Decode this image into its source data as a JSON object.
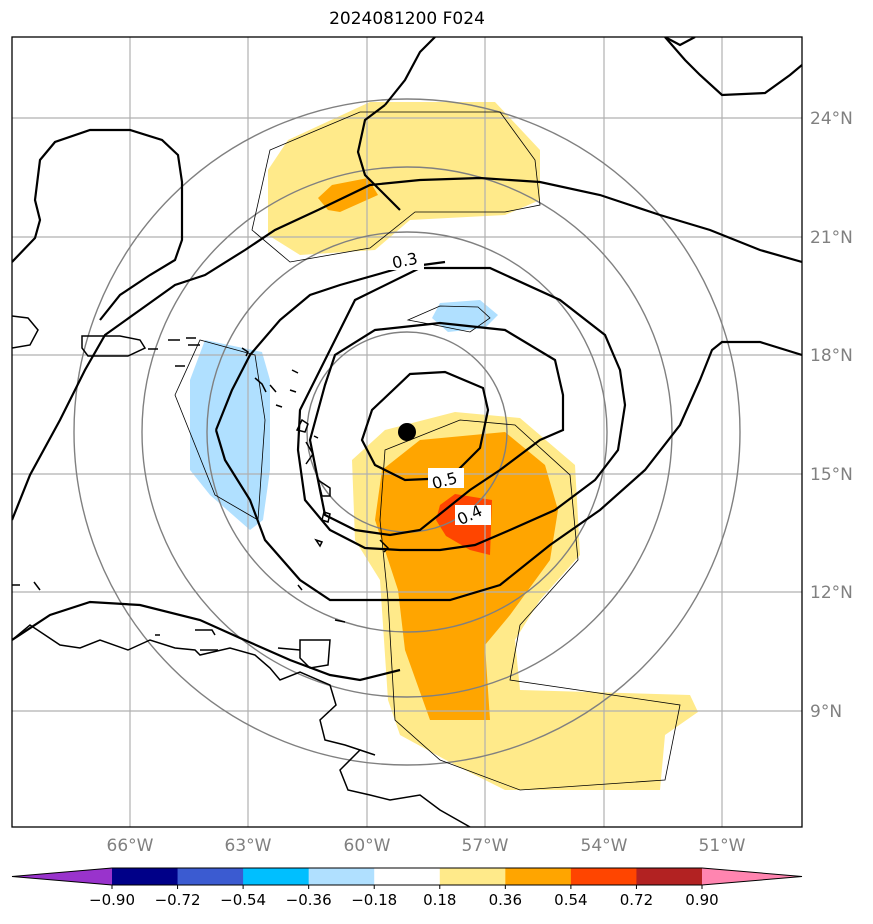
{
  "title": "2024081200 F024",
  "colors": {
    "sh_neg_090": "#9933cc",
    "sh_neg_072": "#000088",
    "sh_neg_054": "#3b5bd1",
    "sh_neg_036": "#00bfff",
    "sh_neg_018": "#b0e0ff",
    "sh_pos_018": "#ffea8a",
    "sh_pos_036": "#ffa500",
    "sh_pos_054": "#ff4500",
    "sh_pos_072": "#b22222",
    "sh_pos_090": "#ff85b0",
    "contour": "#000000",
    "range_ring": "#808080",
    "gridline": "#b0b0b0",
    "axis_label": "#808080",
    "center_marker": "#000000"
  },
  "map": {
    "lon_labels": [
      "66°W",
      "63°W",
      "60°W",
      "57°W",
      "54°W",
      "51°W"
    ],
    "lat_labels": [
      "24°N",
      "21°N",
      "18°N",
      "15°N",
      "12°N",
      "9°N"
    ],
    "contour_labels": [
      "0.3",
      "0.5",
      "0.4"
    ],
    "center_marker": "storm-center"
  },
  "colorbar": {
    "ticks": [
      "−0.90",
      "−0.72",
      "−0.54",
      "−0.36",
      "−0.18",
      "0.18",
      "0.36",
      "0.54",
      "0.72",
      "0.90"
    ],
    "segment_colors": [
      "#9933cc",
      "#000088",
      "#3b5bd1",
      "#00bfff",
      "#b0e0ff",
      "#ffffff",
      "#ffea8a",
      "#ffa500",
      "#ff4500",
      "#b22222",
      "#ff85b0"
    ]
  }
}
